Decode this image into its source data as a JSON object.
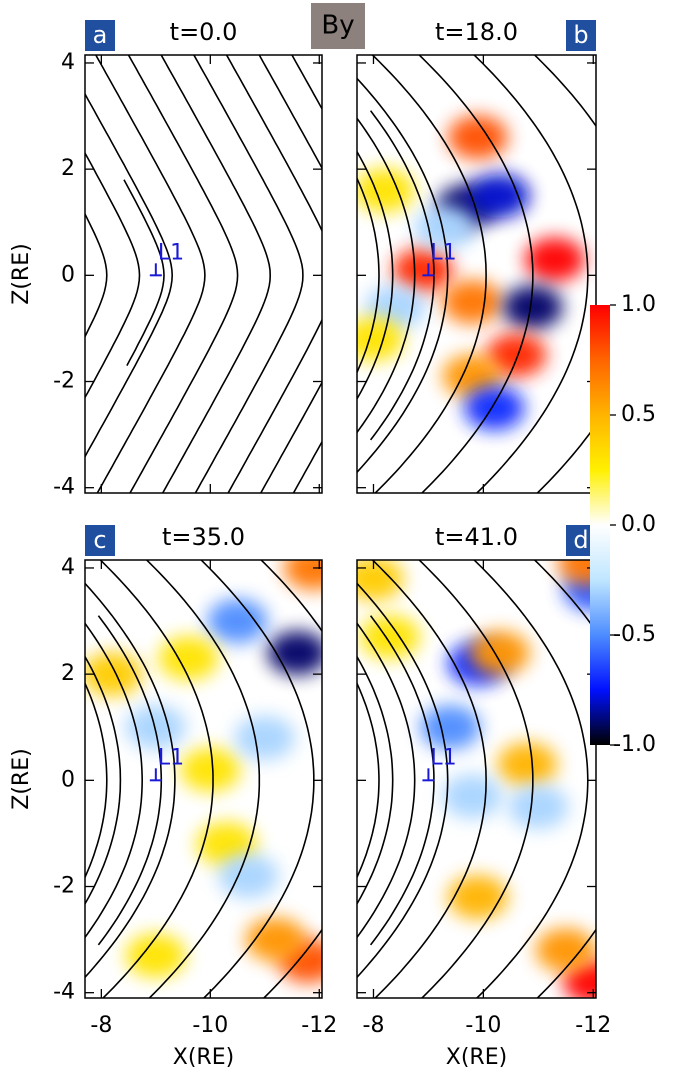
{
  "chart_data": {
    "type": "contour",
    "title": "By",
    "x_label": "X(RE)",
    "y_label": "Z(RE)",
    "xlim": [
      -7.7,
      -12.05
    ],
    "ylim": [
      -4.1,
      4.15
    ],
    "xticks": [
      -8,
      -10,
      -12
    ],
    "yticks": [
      -4,
      -2,
      0,
      2,
      4
    ],
    "colorbar": {
      "clim": [
        -1,
        1
      ],
      "ticks": [
        {
          "value": 1,
          "label": "1.0"
        },
        {
          "value": 0.5,
          "label": "0.5"
        },
        {
          "value": 0,
          "label": "0.0"
        },
        {
          "value": -0.5,
          "label": "-0.5"
        },
        {
          "value": -1,
          "label": "-1.0"
        }
      ],
      "colors": [
        "#000000",
        "#0010ff",
        "#4d8cff",
        "#bfe6ff",
        "#ffffff",
        "#fff000",
        "#ffb400",
        "#ff6400",
        "#ff0000"
      ]
    },
    "marker": {
      "label": "L1",
      "x": -9,
      "z": 0,
      "color": "#1a1ad6"
    },
    "panels": [
      {
        "label": "a",
        "title": "t=0.0",
        "blobs": []
      },
      {
        "label": "b",
        "title": "t=18.0",
        "blobs": [
          {
            "x": -9.9,
            "z": 2.6,
            "value": 0.8
          },
          {
            "x": -9.7,
            "z": 1.3,
            "value": -0.9
          },
          {
            "x": -10.3,
            "z": 1.5,
            "value": -0.8
          },
          {
            "x": -11.3,
            "z": 0.3,
            "value": 1.0
          },
          {
            "x": -8.9,
            "z": 0.1,
            "value": 0.9
          },
          {
            "x": -9.8,
            "z": -0.5,
            "value": 0.7
          },
          {
            "x": -10.9,
            "z": -0.6,
            "value": -0.9
          },
          {
            "x": -10.6,
            "z": -1.5,
            "value": 0.9
          },
          {
            "x": -9.8,
            "z": -1.9,
            "value": 0.6
          },
          {
            "x": -10.2,
            "z": -2.5,
            "value": -0.7
          },
          {
            "x": -8.4,
            "z": -0.6,
            "value": -0.3
          },
          {
            "x": -8.0,
            "z": -1.2,
            "value": 0.3
          },
          {
            "x": -9.3,
            "z": 0.9,
            "value": -0.3
          },
          {
            "x": -8.2,
            "z": 1.6,
            "value": 0.3
          }
        ]
      },
      {
        "label": "c",
        "title": "t=35.0",
        "blobs": [
          {
            "x": -11.6,
            "z": 2.4,
            "value": -0.9
          },
          {
            "x": -10.5,
            "z": 3.0,
            "value": -0.5
          },
          {
            "x": -8.2,
            "z": 2.0,
            "value": 0.4
          },
          {
            "x": -11.8,
            "z": -3.4,
            "value": 0.8
          },
          {
            "x": -11.2,
            "z": -3.0,
            "value": 0.6
          },
          {
            "x": -10.0,
            "z": 0.2,
            "value": 0.3
          },
          {
            "x": -10.3,
            "z": -1.2,
            "value": 0.3
          },
          {
            "x": -10.7,
            "z": -1.8,
            "value": -0.3
          },
          {
            "x": -9.6,
            "z": 2.3,
            "value": 0.3
          },
          {
            "x": -9.0,
            "z": 1.0,
            "value": -0.3
          },
          {
            "x": -11.9,
            "z": 4.0,
            "value": 0.7
          },
          {
            "x": -9.0,
            "z": -3.3,
            "value": 0.3
          },
          {
            "x": -11.0,
            "z": 0.8,
            "value": -0.3
          }
        ]
      },
      {
        "label": "d",
        "title": "t=41.0",
        "blobs": [
          {
            "x": -12.0,
            "z": -3.8,
            "value": 1.0
          },
          {
            "x": -11.5,
            "z": -3.2,
            "value": 0.6
          },
          {
            "x": -12.0,
            "z": 3.6,
            "value": -0.6
          },
          {
            "x": -11.9,
            "z": 4.1,
            "value": 0.7
          },
          {
            "x": -9.9,
            "z": 2.2,
            "value": -0.7
          },
          {
            "x": -10.3,
            "z": 2.4,
            "value": 0.6
          },
          {
            "x": -10.8,
            "z": 0.3,
            "value": 0.5
          },
          {
            "x": -9.8,
            "z": -0.3,
            "value": -0.3
          },
          {
            "x": -9.4,
            "z": 1.0,
            "value": -0.5
          },
          {
            "x": -9.9,
            "z": -2.2,
            "value": 0.5
          },
          {
            "x": -8.0,
            "z": 3.8,
            "value": 0.4
          },
          {
            "x": -11.0,
            "z": -0.5,
            "value": -0.3
          },
          {
            "x": -8.3,
            "z": 2.7,
            "value": 0.3
          }
        ]
      }
    ]
  }
}
